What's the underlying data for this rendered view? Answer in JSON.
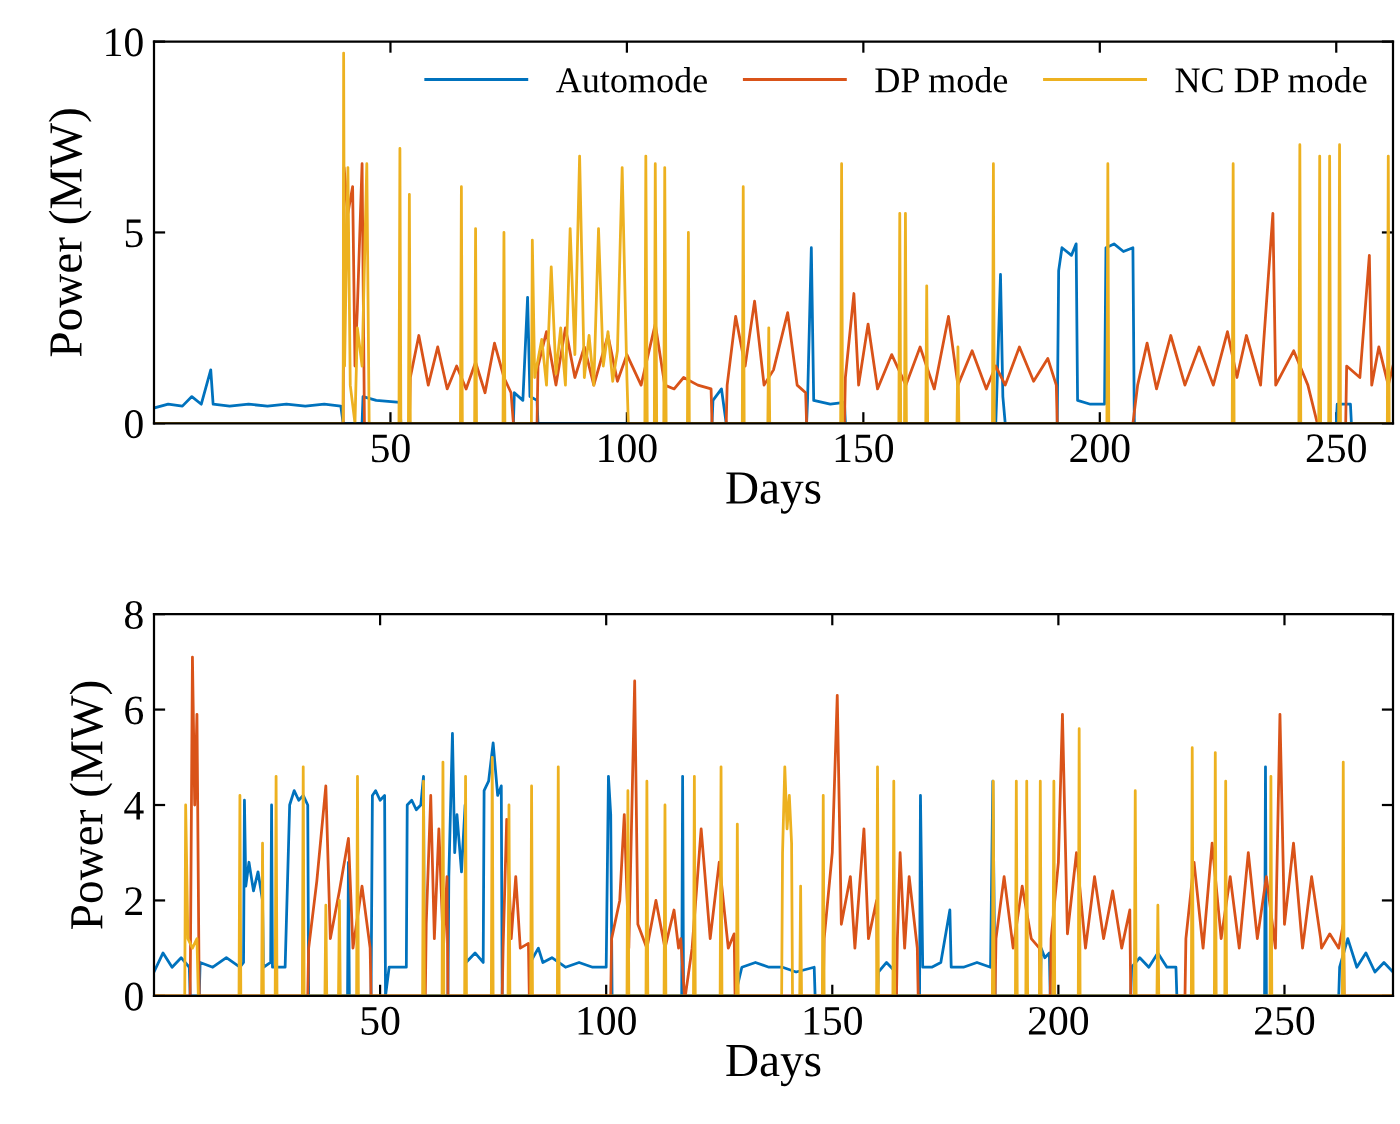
{
  "chart_data": [
    {
      "type": "line",
      "xlabel": "Days",
      "ylabel": "Power (MW)",
      "xlim": [
        0,
        262
      ],
      "ylim": [
        0,
        10
      ],
      "xticks": [
        50,
        100,
        150,
        200,
        250
      ],
      "yticks": [
        0,
        5,
        10
      ],
      "legend": "top right",
      "grid": false,
      "series": [
        {
          "name": "Automode",
          "color": "#0072bd",
          "x": [
            0,
            3,
            6,
            8,
            10,
            12,
            12.5,
            16,
            20,
            24,
            28,
            32,
            36,
            39.5,
            40,
            44,
            44.2,
            47,
            52,
            52.2,
            76,
            76.2,
            78,
            79,
            79.5,
            81,
            81.2,
            118,
            118.2,
            120,
            121,
            138,
            138.2,
            139,
            139.5,
            143,
            146,
            146.2,
            178,
            178.2,
            179,
            179.5,
            180,
            191,
            191.3,
            192,
            194,
            195,
            195.3,
            198,
            201,
            201.3,
            203,
            205,
            207,
            207.3,
            250,
            250.2,
            253,
            253.2,
            262
          ],
          "values": [
            0.4,
            0.5,
            0.45,
            0.7,
            0.5,
            1.4,
            0.5,
            0.45,
            0.5,
            0.45,
            0.5,
            0.45,
            0.5,
            0.45,
            0,
            0,
            0.7,
            0.6,
            0.55,
            0,
            0,
            0.8,
            0.6,
            3.3,
            0.7,
            0.6,
            0,
            0,
            0.6,
            0.9,
            0,
            0,
            0.6,
            4.6,
            0.6,
            0.5,
            0.55,
            0,
            0,
            0.7,
            3.9,
            0.7,
            0,
            0,
            4.0,
            4.6,
            4.4,
            4.7,
            0.6,
            0.5,
            0.5,
            4.6,
            4.7,
            4.5,
            4.6,
            0,
            0,
            0.5,
            0.5,
            0,
            0
          ]
        },
        {
          "name": "DP mode",
          "color": "#d95319",
          "x": [
            0,
            40,
            40.2,
            41,
            42,
            42.5,
            43,
            44,
            44.5,
            54,
            54.2,
            56,
            58,
            60,
            62,
            64,
            66,
            68,
            70,
            72,
            74,
            75.5,
            76,
            81,
            81.2,
            83,
            85,
            87,
            89,
            91,
            93,
            96,
            98,
            100,
            103,
            106,
            108,
            110,
            112,
            115,
            117.8,
            118,
            121,
            121.2,
            123,
            125,
            127,
            129,
            131,
            134,
            136,
            137.8,
            138,
            146,
            146.2,
            148,
            149,
            151,
            153,
            156,
            159,
            162,
            165,
            168,
            170,
            173,
            176,
            178,
            180,
            183,
            186,
            189,
            190.8,
            191,
            207,
            208,
            210,
            212,
            215,
            218,
            221,
            224,
            227,
            229,
            231,
            234,
            236.6,
            237.2,
            241,
            244,
            246,
            252,
            252.2,
            255,
            257,
            257.5,
            259,
            261,
            262
          ],
          "values": [
            0,
            0,
            6.7,
            5.5,
            6.2,
            1.5,
            3.0,
            6.8,
            0,
            0,
            1.2,
            2.3,
            1.0,
            2.0,
            0.9,
            1.5,
            0.9,
            1.6,
            0.8,
            2.1,
            1.2,
            0.8,
            0,
            0,
            1.5,
            2.4,
            1.0,
            2.5,
            1.2,
            2.0,
            1.0,
            2.3,
            1.1,
            1.8,
            1.0,
            2.6,
            1.0,
            0.9,
            1.2,
            1.0,
            0.9,
            0,
            0,
            1.0,
            2.8,
            1.5,
            3.2,
            1.0,
            1.4,
            2.9,
            1.0,
            0.8,
            0,
            0,
            1.2,
            3.4,
            1.0,
            2.6,
            0.9,
            1.8,
            1.0,
            2.0,
            0.9,
            2.8,
            1.0,
            1.9,
            0.9,
            1.5,
            1.0,
            2.0,
            1.1,
            1.7,
            1.0,
            0,
            0,
            1.0,
            2.1,
            0.9,
            2.3,
            1.0,
            2.0,
            1.0,
            2.4,
            1.2,
            2.3,
            1.0,
            5.5,
            1.0,
            1.9,
            1.0,
            0,
            0,
            1.5,
            1.2,
            4.4,
            1.0,
            2.0,
            1.0,
            1.5
          ]
        },
        {
          "name": "NC DP mode",
          "color": "#edb120",
          "x": [
            0,
            40,
            40.1,
            40.3,
            41,
            41.5,
            42.5,
            43,
            44,
            45,
            45.5,
            51.8,
            52,
            52.2,
            53.8,
            54,
            54.2,
            64.8,
            65,
            65.2,
            67.8,
            68,
            68.2,
            73.8,
            74,
            74.2,
            79.8,
            80,
            80.5,
            82,
            83,
            84,
            85,
            86,
            87,
            88,
            89,
            90,
            91,
            92,
            93,
            94,
            95,
            96,
            97,
            98,
            99,
            100,
            100.3,
            103.8,
            104,
            104.3,
            105.8,
            106,
            106.3,
            107.8,
            108,
            108.3,
            112.8,
            113,
            113.2,
            124.4,
            124.6,
            124.8,
            129.8,
            130,
            130.2,
            145.2,
            145.4,
            145.6,
            157.5,
            157.7,
            157.9,
            158.7,
            158.9,
            159.1,
            163.2,
            163.4,
            163.6,
            169.8,
            170,
            170.2,
            177.3,
            177.5,
            177.7,
            201.5,
            201.7,
            201.9,
            228,
            228.2,
            228.4,
            242.1,
            242.3,
            242.5,
            246.3,
            246.5,
            246.7,
            248.4,
            248.6,
            248.8,
            250.5,
            250.7,
            250.9,
            260.8,
            261,
            261.2,
            262
          ],
          "values": [
            0,
            0,
            9.7,
            1.5,
            6.7,
            1.0,
            0,
            2.5,
            1.5,
            6.8,
            0,
            0,
            7.2,
            0,
            0,
            6.0,
            0,
            0,
            6.2,
            0,
            0,
            5.1,
            0,
            0,
            5.0,
            0,
            0,
            4.8,
            1.2,
            2.2,
            1.0,
            4.1,
            1.3,
            2.5,
            1.0,
            5.1,
            1.8,
            7.0,
            1.2,
            2.3,
            1.0,
            5.1,
            1.5,
            2.4,
            1.1,
            1.9,
            6.7,
            1.2,
            0,
            0,
            7.0,
            0,
            0,
            6.8,
            0,
            0,
            6.7,
            0,
            0,
            5.0,
            0,
            0,
            6.2,
            0,
            0,
            2.5,
            0,
            0,
            6.8,
            0,
            0,
            5.5,
            0,
            0,
            5.5,
            0,
            0,
            3.6,
            0,
            0,
            2.0,
            0,
            0,
            6.8,
            0,
            0,
            6.8,
            0,
            0,
            6.8,
            0,
            0,
            7.3,
            0,
            0,
            7.0,
            0,
            0,
            7.0,
            0,
            0,
            7.3,
            0,
            0,
            7.0,
            0,
            0
          ]
        }
      ]
    },
    {
      "type": "line",
      "xlabel": "Days",
      "ylabel": "Power (MW)",
      "xlim": [
        0,
        274
      ],
      "ylim": [
        0,
        8
      ],
      "xticks": [
        50,
        100,
        150,
        200,
        250
      ],
      "yticks": [
        0,
        2,
        4,
        6,
        8
      ],
      "grid": false,
      "series": [
        {
          "color": "#0072bd",
          "x": [
            0,
            2,
            4,
            6,
            7.8,
            8,
            10,
            10.2,
            13,
            16,
            19,
            19.8,
            20,
            20.3,
            21,
            22,
            23,
            24,
            24.2,
            25.8,
            26,
            26.2,
            29,
            30,
            31,
            32,
            33,
            34,
            34.2,
            42.8,
            43,
            43.2,
            48,
            48.3,
            49,
            50,
            51,
            51.2,
            52,
            55,
            55.8,
            56,
            57,
            58,
            59,
            59.6,
            59.8,
            65,
            65.2,
            66,
            66.5,
            67,
            68,
            68.8,
            69,
            71,
            72.8,
            73,
            74,
            75,
            76,
            76.8,
            77,
            83,
            83.2,
            85,
            86,
            88,
            91,
            94,
            97,
            100,
            100.5,
            101,
            101.3,
            116.7,
            116.9,
            117.1,
            128.5,
            130,
            133,
            136,
            139,
            142,
            146,
            146.2,
            160,
            160.2,
            162,
            164,
            164.2,
            169.3,
            169.5,
            170,
            172,
            174,
            176,
            176.3,
            179,
            182,
            185,
            185.5,
            186,
            196,
            196.2,
            197,
            198,
            198.2,
            216,
            216.2,
            218,
            220,
            222,
            224,
            226,
            226.2,
            245.6,
            245.8,
            246,
            262,
            262.2,
            264,
            266,
            268,
            270,
            272,
            274
          ],
          "values": [
            0.5,
            0.9,
            0.6,
            0.8,
            0.6,
            0,
            0,
            0.7,
            0.6,
            0.8,
            0.6,
            0.7,
            4.1,
            2.3,
            2.8,
            2.2,
            2.6,
            2.0,
            0.6,
            0.7,
            4.0,
            0.6,
            0.6,
            4.0,
            4.3,
            4.1,
            4.2,
            4.0,
            0,
            0,
            2.8,
            0,
            0,
            4.2,
            4.3,
            4.1,
            4.2,
            0,
            0.6,
            0.6,
            0.6,
            4.0,
            4.1,
            3.9,
            4.0,
            4.6,
            0,
            0,
            2.5,
            5.5,
            3.0,
            3.8,
            2.6,
            4.0,
            0.7,
            0.9,
            0.7,
            4.3,
            4.5,
            5.3,
            4.2,
            4.4,
            0,
            0,
            0.7,
            1.0,
            0.7,
            0.8,
            0.6,
            0.7,
            0.6,
            0.6,
            4.6,
            3.8,
            0,
            0,
            4.6,
            0,
            0,
            0.6,
            0.7,
            0.6,
            0.6,
            0.5,
            0.6,
            0,
            0,
            0.5,
            0.7,
            0.5,
            0,
            0,
            4.2,
            0.6,
            0.6,
            0.7,
            1.8,
            0.6,
            0.6,
            0.7,
            0.6,
            4.5,
            0,
            0,
            1.0,
            0.8,
            0.9,
            0,
            0,
            0.6,
            0.8,
            0.6,
            0.9,
            0.6,
            0.6,
            0,
            0,
            4.8,
            0,
            0,
            0.6,
            1.2,
            0.6,
            0.9,
            0.5,
            0.7,
            0.5
          ]
        },
        {
          "color": "#d95319",
          "x": [
            0,
            8,
            8.5,
            9,
            9.5,
            10,
            34,
            34.2,
            36,
            38,
            39,
            41,
            43,
            44,
            46,
            47.8,
            48,
            60,
            60.2,
            61.2,
            62,
            63,
            64,
            64.8,
            65,
            77,
            77.2,
            78,
            79,
            80,
            81,
            82.8,
            83,
            101,
            101.2,
            103,
            104,
            105,
            106.3,
            107,
            109,
            111,
            113,
            115,
            116,
            116.5,
            117.3,
            117.5,
            119,
            121,
            123,
            125,
            127,
            128.3,
            128.5,
            148,
            148.2,
            150,
            151.1,
            152,
            154,
            155,
            157,
            158,
            159.8,
            160,
            164.2,
            164.4,
            165,
            166,
            167,
            168.8,
            169,
            186,
            186.2,
            188,
            190,
            192,
            194,
            195.8,
            196,
            198.2,
            198.4,
            200,
            200.9,
            202,
            204,
            206,
            208,
            210,
            212,
            214,
            215.8,
            216,
            228,
            228.2,
            230,
            232,
            234,
            236,
            238,
            240,
            242,
            244,
            246,
            248,
            249,
            250,
            252,
            254,
            256,
            258,
            258.2,
            260,
            262,
            263,
            263.2,
            274
          ],
          "values": [
            0,
            0,
            7.1,
            4.0,
            5.9,
            0,
            0,
            1.0,
            2.4,
            4.4,
            1.2,
            2.2,
            3.3,
            1.0,
            2.3,
            1.0,
            0,
            0,
            1.5,
            4.2,
            1.2,
            3.5,
            1.0,
            2.5,
            0,
            0,
            1.0,
            3.7,
            1.2,
            2.5,
            1.0,
            1.1,
            0,
            0,
            1.2,
            2.0,
            3.8,
            1.0,
            6.6,
            1.5,
            1.0,
            2.0,
            1.0,
            1.8,
            1.0,
            1.2,
            0,
            0,
            1.0,
            3.5,
            1.2,
            2.8,
            1.0,
            1.3,
            0,
            0,
            1.2,
            3.0,
            6.3,
            1.5,
            2.5,
            1.0,
            3.5,
            1.2,
            2.0,
            0,
            0,
            1.2,
            3.0,
            1.0,
            2.5,
            1.0,
            0,
            0,
            1.2,
            2.5,
            1.0,
            2.3,
            1.2,
            1.0,
            0,
            0,
            1.2,
            2.8,
            5.9,
            1.3,
            3.0,
            1.0,
            2.5,
            1.2,
            2.2,
            1.0,
            1.8,
            0,
            0,
            1.2,
            2.8,
            1.0,
            3.2,
            1.2,
            2.5,
            1.0,
            3.0,
            1.2,
            2.5,
            1.0,
            5.9,
            1.5,
            3.2,
            1.0,
            2.5,
            1.2,
            1.0,
            1.3,
            1.0,
            1.5,
            0,
            0
          ]
        },
        {
          "color": "#edb120",
          "x": [
            0,
            6.8,
            7,
            7.5,
            8.5,
            9.5,
            9.8,
            18.8,
            19,
            19.2,
            23.8,
            24,
            24.2,
            26.8,
            27,
            27.2,
            32.8,
            33,
            33.2,
            37.8,
            38,
            38.2,
            40.8,
            41,
            41.2,
            44.8,
            45,
            45.2,
            59.4,
            59.6,
            59.8,
            63.7,
            63.9,
            64.1,
            68.7,
            68.9,
            69.1,
            74.6,
            74.8,
            75,
            78.3,
            78.5,
            78.7,
            83.3,
            83.5,
            83.7,
            89.2,
            89.4,
            89.6,
            104.6,
            104.8,
            105,
            108.8,
            109,
            109.2,
            112.8,
            113,
            113.2,
            119.3,
            119.5,
            119.7,
            125.2,
            125.4,
            125.6,
            128.8,
            129,
            129.2,
            138.8,
            139,
            139.5,
            140,
            140.5,
            141,
            141.2,
            142.8,
            143,
            143.2,
            147.8,
            148,
            148.2,
            159.8,
            160,
            160.2,
            163.4,
            163.6,
            163.8,
            185.4,
            185.6,
            185.8,
            190.5,
            190.7,
            190.9,
            192.8,
            193,
            193.2,
            195.8,
            196,
            196.2,
            198.8,
            199,
            199.2,
            204.4,
            204.6,
            204.8,
            216.8,
            217,
            217.2,
            221.8,
            222,
            222.2,
            229.4,
            229.6,
            229.8,
            234.5,
            234.7,
            234.9,
            236.8,
            237,
            237.2,
            246.8,
            247,
            247.2,
            262.8,
            263,
            263.2,
            274
          ],
          "values": [
            0,
            0,
            4.0,
            1.2,
            1.0,
            1.2,
            0,
            0,
            4.2,
            0,
            0,
            3.2,
            0,
            0,
            4.6,
            0,
            0,
            4.8,
            0,
            0,
            1.9,
            0,
            0,
            2.0,
            0,
            0,
            4.6,
            0,
            0,
            4.5,
            0,
            0,
            4.9,
            0,
            0,
            4.6,
            0,
            0,
            5.0,
            0,
            0,
            4.0,
            0,
            0,
            4.4,
            0,
            0,
            4.8,
            0,
            0,
            4.3,
            0,
            0,
            4.5,
            0,
            0,
            4.0,
            0,
            0,
            4.6,
            0,
            0,
            4.8,
            0,
            0,
            3.6,
            0,
            0,
            3.0,
            4.8,
            3.5,
            4.2,
            3.2,
            0,
            0,
            2.3,
            0,
            0,
            4.2,
            0,
            0,
            4.8,
            0,
            0,
            4.5,
            0,
            0,
            4.5,
            0,
            0,
            4.5,
            0,
            0,
            4.5,
            0,
            0,
            4.5,
            0,
            0,
            4.5,
            0,
            0,
            5.6,
            0,
            0,
            4.3,
            0,
            0,
            1.9,
            0,
            0,
            5.2,
            0,
            0,
            5.1,
            0,
            0,
            4.5,
            0,
            0,
            4.6,
            0,
            0,
            4.9,
            0,
            0
          ]
        }
      ]
    }
  ]
}
